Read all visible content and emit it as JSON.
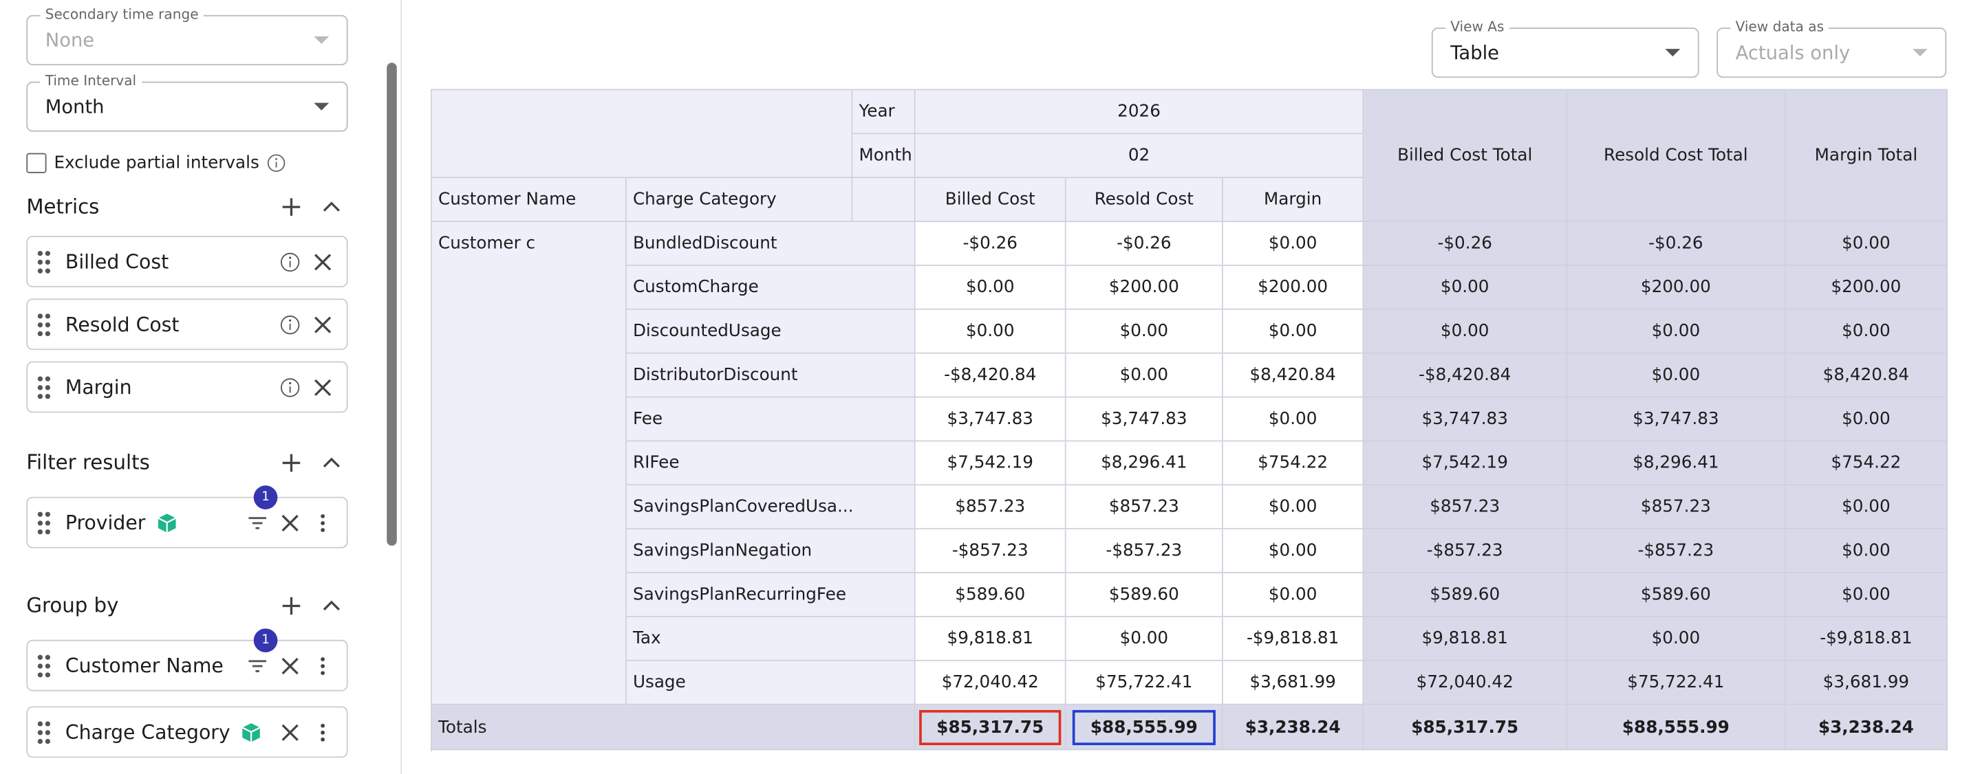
{
  "sidebar": {
    "secondary_time_range": {
      "label": "Secondary time range",
      "value": "None"
    },
    "time_interval": {
      "label": "Time Interval",
      "value": "Month"
    },
    "exclude_partial": "Exclude partial intervals",
    "metrics": {
      "title": "Metrics",
      "items": [
        "Billed Cost",
        "Resold Cost",
        "Margin"
      ]
    },
    "filter": {
      "title": "Filter results",
      "items": [
        {
          "name": "Provider",
          "badge": "1"
        }
      ]
    },
    "group_by": {
      "title": "Group by",
      "items": [
        {
          "name": "Customer Name",
          "badge": "1"
        },
        {
          "name": "Charge Category"
        }
      ]
    }
  },
  "controls": {
    "view_as": {
      "label": "View As",
      "value": "Table"
    },
    "view_data_as": {
      "label": "View data as",
      "value": "Actuals only"
    }
  },
  "table": {
    "year_label": "Year",
    "year": "2026",
    "month_label": "Month",
    "month": "02",
    "row_headers": [
      "Customer Name",
      "Charge Category"
    ],
    "columns": [
      "Billed Cost",
      "Resold Cost",
      "Margin"
    ],
    "total_columns": [
      "Billed Cost Total",
      "Resold Cost Total",
      "Margin Total"
    ],
    "customer": "Customer c",
    "rows": [
      [
        "BundledDiscount",
        "-$0.26",
        "-$0.26",
        "$0.00",
        "-$0.26",
        "-$0.26",
        "$0.00"
      ],
      [
        "CustomCharge",
        "$0.00",
        "$200.00",
        "$200.00",
        "$0.00",
        "$200.00",
        "$200.00"
      ],
      [
        "DiscountedUsage",
        "$0.00",
        "$0.00",
        "$0.00",
        "$0.00",
        "$0.00",
        "$0.00"
      ],
      [
        "DistributorDiscount",
        "-$8,420.84",
        "$0.00",
        "$8,420.84",
        "-$8,420.84",
        "$0.00",
        "$8,420.84"
      ],
      [
        "Fee",
        "$3,747.83",
        "$3,747.83",
        "$0.00",
        "$3,747.83",
        "$3,747.83",
        "$0.00"
      ],
      [
        "RIFee",
        "$7,542.19",
        "$8,296.41",
        "$754.22",
        "$7,542.19",
        "$8,296.41",
        "$754.22"
      ],
      [
        "SavingsPlanCoveredUsa...",
        "$857.23",
        "$857.23",
        "$0.00",
        "$857.23",
        "$857.23",
        "$0.00"
      ],
      [
        "SavingsPlanNegation",
        "-$857.23",
        "-$857.23",
        "$0.00",
        "-$857.23",
        "-$857.23",
        "$0.00"
      ],
      [
        "SavingsPlanRecurringFee",
        "$589.60",
        "$589.60",
        "$0.00",
        "$589.60",
        "$589.60",
        "$0.00"
      ],
      [
        "Tax",
        "$9,818.81",
        "$0.00",
        "-$9,818.81",
        "$9,818.81",
        "$0.00",
        "-$9,818.81"
      ],
      [
        "Usage",
        "$72,040.42",
        "$75,722.41",
        "$3,681.99",
        "$72,040.42",
        "$75,722.41",
        "$3,681.99"
      ]
    ],
    "totals_label": "Totals",
    "totals": [
      "$85,317.75",
      "$88,555.99",
      "$3,238.24",
      "$85,317.75",
      "$88,555.99",
      "$3,238.24"
    ]
  }
}
